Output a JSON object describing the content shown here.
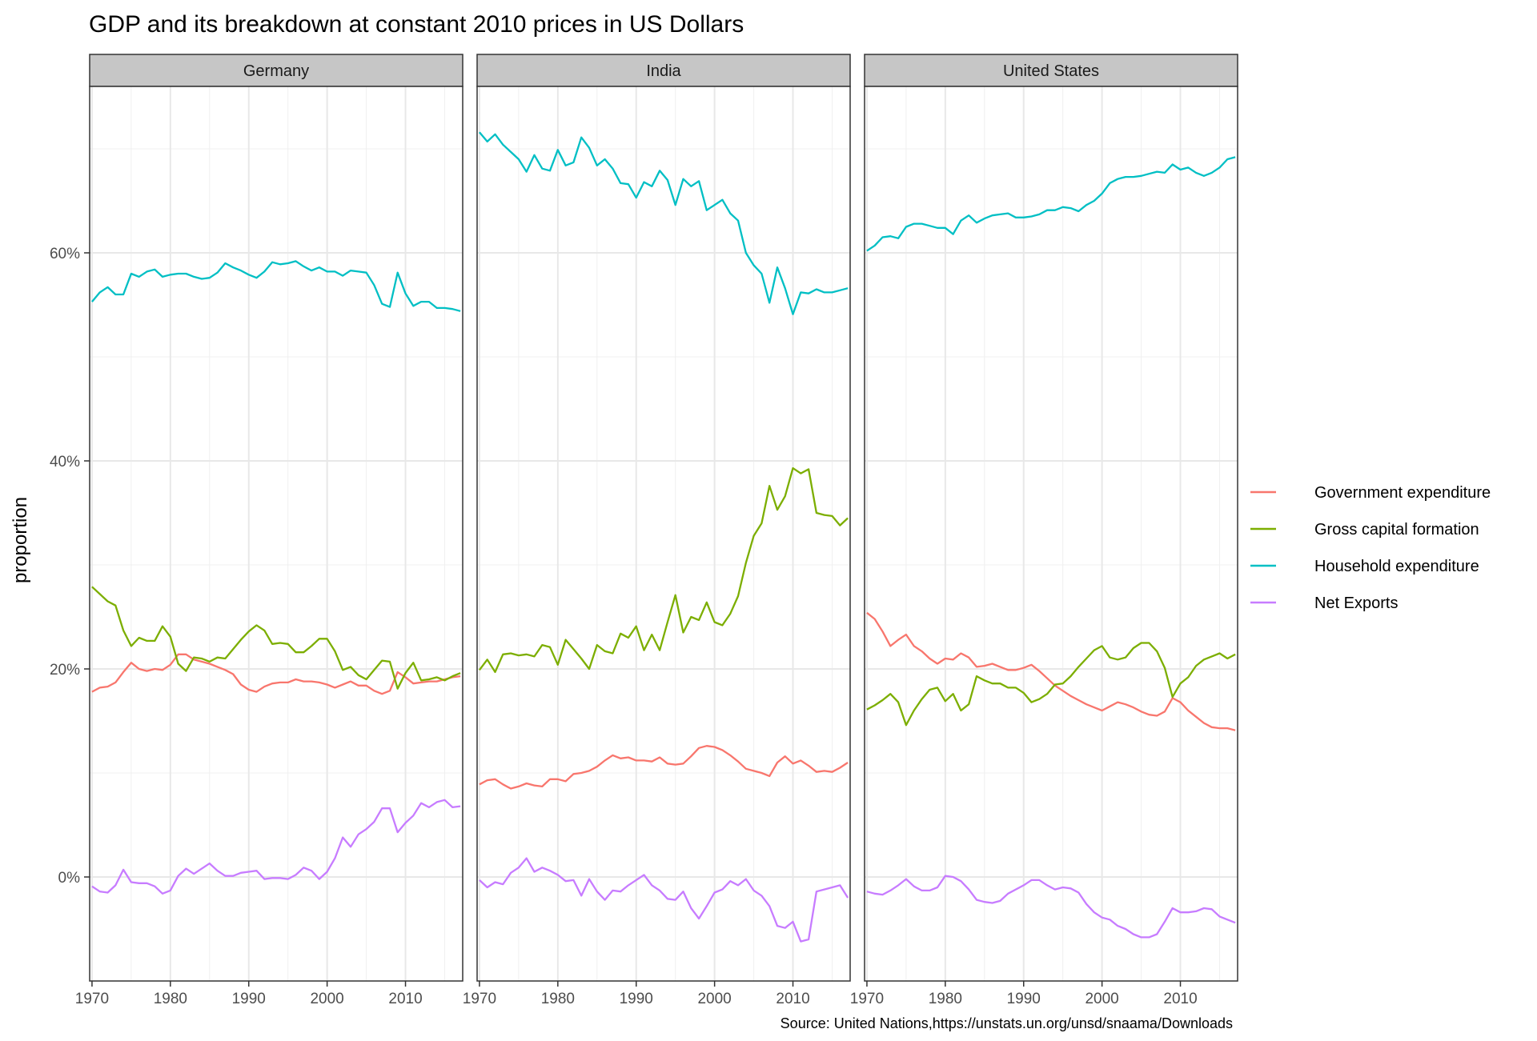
{
  "chart_data": {
    "type": "line",
    "title": "GDP and its breakdown at constant 2010 prices in US Dollars",
    "ylabel": "proportion",
    "xlabel": "",
    "caption": "Source: United Nations,https://unstats.un.org/unsd/snaama/Downloads",
    "x_range": [
      1970,
      2017
    ],
    "ylim": [
      -0.1,
      0.76
    ],
    "x_ticks": [
      1970,
      1980,
      1990,
      2000,
      2010
    ],
    "x_tick_labels": [
      "1970",
      "1980",
      "1990",
      "2000",
      "2010"
    ],
    "y_ticks": [
      0,
      0.2,
      0.4,
      0.6
    ],
    "y_tick_labels": [
      "0%",
      "20%",
      "40%",
      "60%"
    ],
    "grid": true,
    "legend_position": "right",
    "legend": [
      {
        "key": "gov",
        "label": "Government expenditure",
        "color": "#F8766D"
      },
      {
        "key": "gcf",
        "label": "Gross capital formation",
        "color": "#7CAE00"
      },
      {
        "key": "hh",
        "label": "Household expenditure",
        "color": "#00BFC4"
      },
      {
        "key": "nx",
        "label": "Net Exports",
        "color": "#C77CFF"
      }
    ],
    "x_years_start": 1970,
    "panels": [
      {
        "name": "Germany",
        "series": {
          "hh": [
            0.553,
            0.562,
            0.567,
            0.56,
            0.56,
            0.58,
            0.577,
            0.582,
            0.584,
            0.577,
            0.579,
            0.58,
            0.58,
            0.577,
            0.575,
            0.576,
            0.581,
            0.59,
            0.586,
            0.583,
            0.579,
            0.576,
            0.582,
            0.591,
            0.589,
            0.59,
            0.592,
            0.587,
            0.583,
            0.586,
            0.582,
            0.582,
            0.578,
            0.583,
            0.582,
            0.581,
            0.569,
            0.551,
            0.548,
            0.581,
            0.561,
            0.549,
            0.553,
            0.553,
            0.547,
            0.547,
            0.546,
            0.544
          ],
          "gov": [
            0.178,
            0.182,
            0.183,
            0.187,
            0.197,
            0.206,
            0.2,
            0.198,
            0.2,
            0.199,
            0.204,
            0.214,
            0.214,
            0.209,
            0.207,
            0.205,
            0.202,
            0.199,
            0.195,
            0.185,
            0.18,
            0.178,
            0.183,
            0.186,
            0.187,
            0.187,
            0.19,
            0.188,
            0.188,
            0.187,
            0.185,
            0.182,
            0.185,
            0.188,
            0.184,
            0.184,
            0.179,
            0.176,
            0.179,
            0.197,
            0.192,
            0.186,
            0.187,
            0.188,
            0.188,
            0.19,
            0.192,
            0.193
          ],
          "gcf": [
            0.279,
            0.272,
            0.265,
            0.261,
            0.237,
            0.222,
            0.23,
            0.227,
            0.227,
            0.241,
            0.231,
            0.205,
            0.198,
            0.211,
            0.21,
            0.207,
            0.211,
            0.21,
            0.219,
            0.228,
            0.236,
            0.242,
            0.237,
            0.224,
            0.225,
            0.224,
            0.216,
            0.216,
            0.222,
            0.229,
            0.229,
            0.217,
            0.199,
            0.202,
            0.194,
            0.19,
            0.199,
            0.208,
            0.207,
            0.181,
            0.196,
            0.206,
            0.189,
            0.19,
            0.192,
            0.189,
            0.193,
            0.196
          ],
          "nx": [
            -0.009,
            -0.014,
            -0.015,
            -0.008,
            0.007,
            -0.005,
            -0.006,
            -0.006,
            -0.009,
            -0.016,
            -0.013,
            0.001,
            0.008,
            0.003,
            0.008,
            0.013,
            0.006,
            0.001,
            0.001,
            0.004,
            0.005,
            0.006,
            -0.002,
            -0.001,
            -0.001,
            -0.002,
            0.002,
            0.009,
            0.006,
            -0.002,
            0.005,
            0.018,
            0.038,
            0.029,
            0.041,
            0.046,
            0.053,
            0.066,
            0.066,
            0.043,
            0.052,
            0.059,
            0.071,
            0.067,
            0.072,
            0.074,
            0.067,
            0.068
          ]
        }
      },
      {
        "name": "India",
        "series": {
          "hh": [
            0.716,
            0.707,
            0.714,
            0.704,
            0.697,
            0.69,
            0.678,
            0.694,
            0.681,
            0.679,
            0.699,
            0.684,
            0.687,
            0.711,
            0.701,
            0.684,
            0.69,
            0.681,
            0.667,
            0.666,
            0.653,
            0.668,
            0.664,
            0.679,
            0.67,
            0.646,
            0.671,
            0.664,
            0.669,
            0.641,
            0.646,
            0.651,
            0.638,
            0.631,
            0.6,
            0.588,
            0.58,
            0.552,
            0.586,
            0.566,
            0.541,
            0.562,
            0.561,
            0.565,
            0.562,
            0.562,
            0.564,
            0.566
          ],
          "gov": [
            0.089,
            0.093,
            0.094,
            0.089,
            0.085,
            0.087,
            0.09,
            0.088,
            0.087,
            0.094,
            0.094,
            0.092,
            0.099,
            0.1,
            0.102,
            0.106,
            0.112,
            0.117,
            0.114,
            0.115,
            0.112,
            0.112,
            0.111,
            0.115,
            0.109,
            0.108,
            0.109,
            0.116,
            0.124,
            0.126,
            0.125,
            0.122,
            0.117,
            0.111,
            0.104,
            0.102,
            0.1,
            0.097,
            0.11,
            0.116,
            0.109,
            0.112,
            0.107,
            0.101,
            0.102,
            0.101,
            0.105,
            0.11
          ],
          "gcf": [
            0.199,
            0.209,
            0.197,
            0.214,
            0.215,
            0.213,
            0.214,
            0.212,
            0.223,
            0.221,
            0.204,
            0.228,
            0.219,
            0.21,
            0.2,
            0.223,
            0.217,
            0.215,
            0.234,
            0.23,
            0.241,
            0.218,
            0.233,
            0.218,
            0.245,
            0.271,
            0.235,
            0.25,
            0.247,
            0.264,
            0.245,
            0.242,
            0.253,
            0.27,
            0.302,
            0.328,
            0.34,
            0.376,
            0.353,
            0.366,
            0.393,
            0.388,
            0.392,
            0.35,
            0.348,
            0.347,
            0.338,
            0.345
          ],
          "nx": [
            -0.003,
            -0.01,
            -0.005,
            -0.007,
            0.004,
            0.009,
            0.018,
            0.005,
            0.009,
            0.006,
            0.002,
            -0.004,
            -0.003,
            -0.018,
            -0.002,
            -0.014,
            -0.022,
            -0.013,
            -0.014,
            -0.008,
            -0.003,
            0.002,
            -0.008,
            -0.013,
            -0.021,
            -0.022,
            -0.014,
            -0.03,
            -0.04,
            -0.028,
            -0.015,
            -0.012,
            -0.004,
            -0.008,
            -0.002,
            -0.013,
            -0.018,
            -0.028,
            -0.047,
            -0.049,
            -0.043,
            -0.062,
            -0.06,
            -0.014,
            -0.012,
            -0.01,
            -0.008,
            -0.02
          ]
        }
      },
      {
        "name": "United States",
        "series": {
          "hh": [
            0.602,
            0.607,
            0.615,
            0.616,
            0.614,
            0.625,
            0.628,
            0.628,
            0.626,
            0.624,
            0.624,
            0.618,
            0.631,
            0.636,
            0.629,
            0.633,
            0.636,
            0.637,
            0.638,
            0.634,
            0.634,
            0.635,
            0.637,
            0.641,
            0.641,
            0.644,
            0.643,
            0.64,
            0.646,
            0.65,
            0.657,
            0.667,
            0.671,
            0.673,
            0.673,
            0.674,
            0.676,
            0.678,
            0.677,
            0.685,
            0.68,
            0.682,
            0.677,
            0.674,
            0.677,
            0.682,
            0.69,
            0.692
          ],
          "gov": [
            0.254,
            0.248,
            0.236,
            0.222,
            0.228,
            0.233,
            0.222,
            0.217,
            0.21,
            0.205,
            0.21,
            0.209,
            0.215,
            0.211,
            0.202,
            0.203,
            0.205,
            0.202,
            0.199,
            0.199,
            0.201,
            0.204,
            0.198,
            0.191,
            0.184,
            0.179,
            0.174,
            0.17,
            0.166,
            0.163,
            0.16,
            0.164,
            0.168,
            0.166,
            0.163,
            0.159,
            0.156,
            0.155,
            0.159,
            0.172,
            0.168,
            0.16,
            0.154,
            0.148,
            0.144,
            0.143,
            0.143,
            0.141
          ],
          "gcf": [
            0.161,
            0.165,
            0.17,
            0.176,
            0.168,
            0.146,
            0.16,
            0.171,
            0.18,
            0.182,
            0.169,
            0.176,
            0.16,
            0.166,
            0.193,
            0.189,
            0.186,
            0.186,
            0.182,
            0.182,
            0.177,
            0.168,
            0.171,
            0.176,
            0.185,
            0.186,
            0.193,
            0.202,
            0.21,
            0.218,
            0.222,
            0.211,
            0.209,
            0.211,
            0.22,
            0.225,
            0.225,
            0.217,
            0.201,
            0.173,
            0.186,
            0.192,
            0.203,
            0.209,
            0.212,
            0.215,
            0.21,
            0.214
          ],
          "nx": [
            -0.014,
            -0.016,
            -0.017,
            -0.013,
            -0.008,
            -0.002,
            -0.009,
            -0.013,
            -0.013,
            -0.01,
            0.001,
            0.0,
            -0.004,
            -0.012,
            -0.022,
            -0.024,
            -0.025,
            -0.023,
            -0.016,
            -0.012,
            -0.008,
            -0.003,
            -0.003,
            -0.008,
            -0.012,
            -0.01,
            -0.011,
            -0.015,
            -0.026,
            -0.034,
            -0.039,
            -0.041,
            -0.047,
            -0.05,
            -0.055,
            -0.058,
            -0.058,
            -0.055,
            -0.043,
            -0.03,
            -0.034,
            -0.034,
            -0.033,
            -0.03,
            -0.031,
            -0.038,
            -0.041,
            -0.044
          ]
        }
      }
    ]
  }
}
